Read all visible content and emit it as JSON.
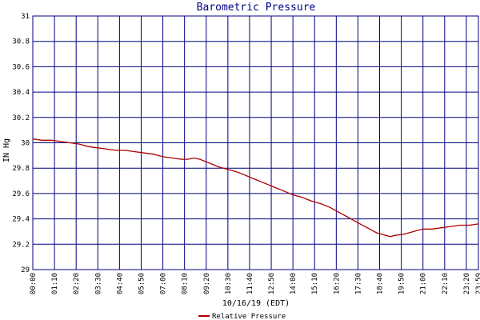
{
  "chart_data": {
    "type": "line",
    "title": "Barometric Pressure",
    "ylabel": "IN Hg",
    "xlabel": "10/16/19 (EDT)",
    "ylim": [
      29,
      31
    ],
    "yticks": [
      "29",
      "29.2",
      "29.4",
      "29.6",
      "29.8",
      "30",
      "30.2",
      "30.4",
      "30.6",
      "30.8",
      "31"
    ],
    "xticks": [
      "00:00",
      "01:10",
      "02:20",
      "03:30",
      "04:40",
      "05:50",
      "07:00",
      "08:10",
      "09:20",
      "10:30",
      "11:40",
      "12:50",
      "14:00",
      "15:10",
      "16:20",
      "17:30",
      "18:40",
      "19:50",
      "21:00",
      "22:10",
      "23:20",
      "23:59"
    ],
    "grid": true,
    "legend_position": "bottom-center",
    "colors": {
      "grid": "#000080",
      "series": "#b00000"
    },
    "series": [
      {
        "name": "Relative Pressure",
        "x": [
          "00:00",
          "00:30",
          "01:00",
          "01:30",
          "02:00",
          "02:30",
          "03:00",
          "03:30",
          "04:00",
          "04:30",
          "05:00",
          "05:30",
          "06:00",
          "06:30",
          "07:00",
          "07:30",
          "08:00",
          "08:20",
          "08:40",
          "09:00",
          "09:20",
          "09:40",
          "10:00",
          "10:30",
          "11:00",
          "11:30",
          "12:00",
          "12:30",
          "13:00",
          "13:30",
          "14:00",
          "14:30",
          "15:00",
          "15:30",
          "16:00",
          "16:30",
          "17:00",
          "17:30",
          "18:00",
          "18:30",
          "19:00",
          "19:15",
          "19:30",
          "20:00",
          "20:30",
          "21:00",
          "21:30",
          "22:00",
          "22:30",
          "23:00",
          "23:30",
          "23:59"
        ],
        "values": [
          30.03,
          30.02,
          30.02,
          30.01,
          30.0,
          29.99,
          29.97,
          29.96,
          29.95,
          29.94,
          29.94,
          29.93,
          29.92,
          29.91,
          29.89,
          29.88,
          29.87,
          29.87,
          29.88,
          29.87,
          29.85,
          29.83,
          29.81,
          29.79,
          29.77,
          29.74,
          29.71,
          29.68,
          29.65,
          29.62,
          29.59,
          29.57,
          29.54,
          29.52,
          29.49,
          29.45,
          29.41,
          29.37,
          29.33,
          29.29,
          29.27,
          29.26,
          29.27,
          29.28,
          29.3,
          29.32,
          29.32,
          29.33,
          29.34,
          29.35,
          29.35,
          29.36
        ]
      }
    ]
  }
}
